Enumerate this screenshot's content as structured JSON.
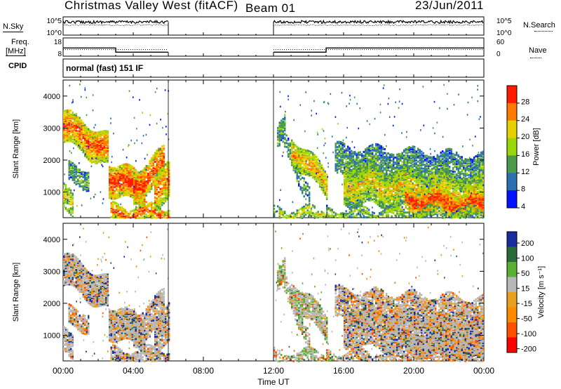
{
  "header": {
    "station": "Christmas Valley West (fitACF)",
    "beam": "Beam 01",
    "date": "23/Jun/2011"
  },
  "left_labels": {
    "nsky": "N.Sky",
    "freq": "Freq.",
    "freq_unit": "[MHz]",
    "cpid": "CPID"
  },
  "right_labels": {
    "nsearch": "N.Search",
    "nave": "Nave"
  },
  "cpid_text": "normal (fast) 151 IF",
  "chart_data": [
    {
      "type": "line",
      "name": "noise",
      "y_ticks_left": [
        "10^5",
        "10^0"
      ],
      "y_ticks_right": [
        "10^5",
        "10^0"
      ],
      "series": [
        {
          "name": "N.Sky",
          "segments": [
            [
              0,
              6
            ],
            [
              12,
              24
            ]
          ],
          "level": 0.72
        },
        {
          "name": "N.Search",
          "segments": [
            [
              0,
              6
            ],
            [
              12,
              24
            ]
          ],
          "level": 0.55
        }
      ]
    },
    {
      "type": "line",
      "name": "frequency",
      "y_ticks_left": [
        "18",
        "8"
      ],
      "y_ticks_right": [
        "60",
        "0"
      ],
      "series": [
        {
          "name": "Freq",
          "x": [
            0,
            3,
            3,
            6,
            12,
            15,
            15,
            24
          ],
          "y": [
            12.5,
            12.5,
            10.2,
            10.2,
            10.2,
            10.2,
            12.5,
            12.5
          ]
        },
        {
          "name": "Nave",
          "x": [
            0,
            6,
            12,
            24
          ],
          "y": [
            11.6,
            11.6,
            11.6,
            11.6
          ]
        }
      ]
    },
    {
      "type": "heatmap",
      "name": "power",
      "ylabel": "Slant Range [km]",
      "y_ticks": [
        "4000",
        "3000",
        "2000",
        "1000"
      ],
      "ylim": [
        200,
        4500
      ],
      "colorbar_label": "Power [dB]",
      "colorbar_ticks": [
        "28",
        "24",
        "20",
        "16",
        "12",
        "8",
        "4"
      ],
      "colorbar_colors": [
        "#ff1a00",
        "#ff7a00",
        "#e8d000",
        "#9ad60a",
        "#4a9a4a",
        "#2a6fb0",
        "#0014ff"
      ]
    },
    {
      "type": "heatmap",
      "name": "velocity",
      "ylabel": "Slant Range [km]",
      "y_ticks": [
        "4000",
        "3000",
        "2000",
        "1000"
      ],
      "ylim": [
        200,
        4500
      ],
      "colorbar_label": "Velocity [m s⁻¹]",
      "colorbar_ticks": [
        "200",
        "100",
        "50",
        "15",
        "-15",
        "-50",
        "-100",
        "-200"
      ],
      "colorbar_colors": [
        "#1a2aa0",
        "#2a6a3a",
        "#5ab030",
        "#b8b8b8",
        "#e8a020",
        "#ff8a00",
        "#ff5000",
        "#ff0000"
      ],
      "x_ticks": [
        "00:00",
        "04:00",
        "08:00",
        "12:00",
        "16:00",
        "20:00",
        "00:00"
      ],
      "xlabel": "Time UT"
    }
  ]
}
